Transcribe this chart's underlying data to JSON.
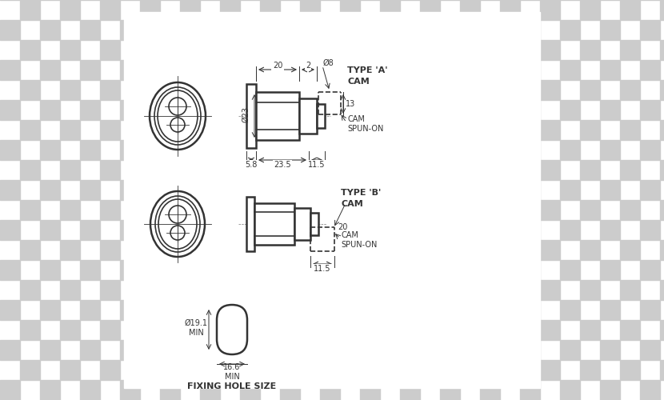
{
  "bg_color": "#ffffff",
  "checker_color": "#cccccc",
  "line_color": "#333333",
  "title": "FIXING HOLE SIZE",
  "type_a_label": "TYPE 'A'\nCAM",
  "type_b_label": "TYPE 'B'\nCAM",
  "cam_spun_label": "CAM\nSPUN-ON",
  "dims": {
    "top_dim_20": "20",
    "top_dim_2": "2",
    "top_dim_phi8": "Ø8",
    "top_dim_phi23": "Ø23",
    "top_dim_13": "13",
    "top_dim_5_8": "5.8",
    "top_dim_23_5": "23.5",
    "top_dim_11_5": "11.5",
    "bot_dim_20": "20",
    "bot_dim_11_5": "11.5",
    "fix_phi": "Ø19.1\nMIN",
    "fix_w": "16.6\nMIN"
  }
}
